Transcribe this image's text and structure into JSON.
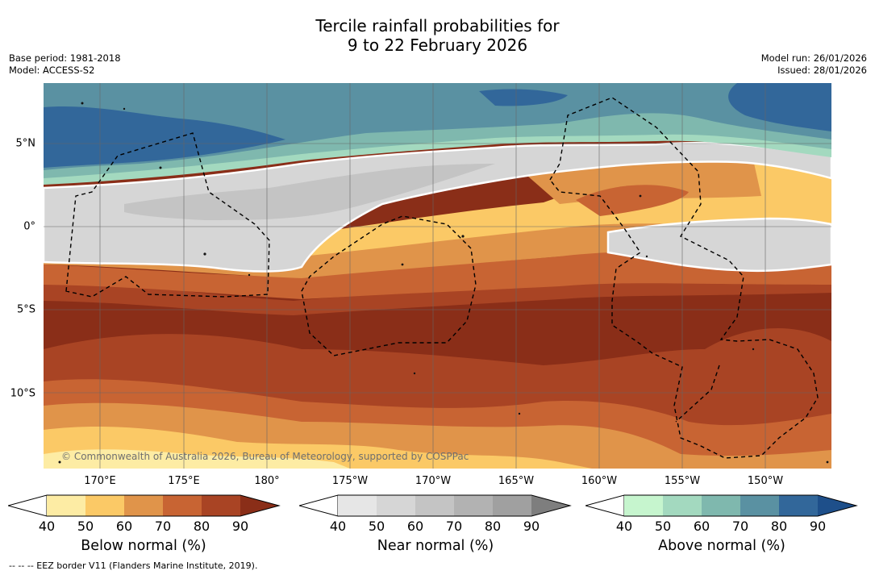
{
  "title": {
    "line1": "Tercile rainfall probabilities for",
    "line2": "9 to 22 February 2026"
  },
  "meta_left": {
    "base_period": "Base period: 1981-2018",
    "model": "Model: ACCESS-S2"
  },
  "meta_right": {
    "model_run": "Model run: 26/01/2026",
    "issued": "Issued: 28/01/2026"
  },
  "copyright": "© Commonwealth of Australia 2026, Bureau of Meteorology, supported by COSPPac",
  "lat_labels": [
    "5°N",
    "0°",
    "5°S",
    "10°S"
  ],
  "lon_labels": [
    "170°E",
    "175°E",
    "180°",
    "175°W",
    "170°W",
    "165°W",
    "160°W",
    "155°W",
    "150°W"
  ],
  "colorbars": [
    {
      "title": "Below normal (%)",
      "ticks": [
        "40",
        "50",
        "60",
        "70",
        "80",
        "90"
      ],
      "colors": [
        "#fdeca4",
        "#fbc966",
        "#e0944a",
        "#c86433",
        "#a94424",
        "#8a2e18"
      ]
    },
    {
      "title": "Near normal (%)",
      "ticks": [
        "40",
        "50",
        "60",
        "70",
        "80",
        "90"
      ],
      "colors": [
        "#e6e6e6",
        "#d6d6d6",
        "#c4c4c4",
        "#b2b2b2",
        "#a0a0a0",
        "#7e7e7e"
      ]
    },
    {
      "title": "Above normal (%)",
      "ticks": [
        "40",
        "50",
        "60",
        "70",
        "80",
        "90"
      ],
      "colors": [
        "#c6f5ce",
        "#a3d9bf",
        "#7fb8ae",
        "#5a91a2",
        "#32679a",
        "#1e4f8a"
      ]
    }
  ],
  "footnote": "--  --  -- EEZ border V11 (Flanders Marine Institute, 2019).",
  "map_colors": {
    "blue_dark": "#32679a",
    "blue_mid": "#5a91a2",
    "teal": "#7fb8ae",
    "green_light": "#a3d9bf",
    "grey_light": "#d6d6d6",
    "grey_mid": "#c4c4c4",
    "yellow": "#fbc966",
    "yellow_light": "#fdeca4",
    "orange": "#e0944a",
    "orange_dark": "#c86433",
    "brown": "#a94424",
    "brown_dark": "#8a2e18"
  }
}
